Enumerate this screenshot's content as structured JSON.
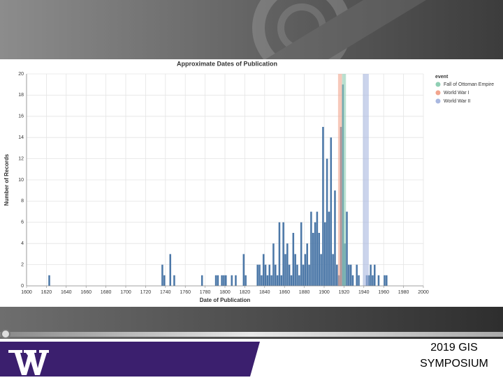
{
  "chart_data": {
    "type": "histogram",
    "title": "Approximate Dates of Publication",
    "x_label": "Date of Publication",
    "y_label": "Number of Records",
    "bins": [
      1622,
      1624,
      1736,
      1738,
      1740,
      1742,
      1744,
      1746,
      1748,
      1750,
      1752,
      1754,
      1756,
      1758,
      1760,
      1762,
      1764,
      1766,
      1768,
      1770,
      1772,
      1774,
      1776,
      1778,
      1780,
      1782,
      1784,
      1786,
      1788,
      1790,
      1792,
      1794,
      1796,
      1798,
      1800,
      1802,
      1804,
      1806,
      1808,
      1810,
      1812,
      1814,
      1816,
      1818,
      1820,
      1822,
      1824,
      1826,
      1828,
      1830,
      1832,
      1834,
      1836,
      1838,
      1840,
      1842,
      1844,
      1846,
      1848,
      1850,
      1852,
      1854,
      1856,
      1858,
      1860,
      1862,
      1864,
      1866,
      1868,
      1870,
      1872,
      1874,
      1876,
      1878,
      1880,
      1882,
      1884,
      1886,
      1888,
      1890,
      1892,
      1894,
      1896,
      1898,
      1900,
      1902,
      1904,
      1906,
      1908,
      1910,
      1912,
      1914,
      1916,
      1918,
      1920,
      1922,
      1924,
      1926,
      1928,
      1930,
      1932,
      1934,
      1936,
      1938,
      1940,
      1942,
      1944,
      1946,
      1948,
      1950,
      1952,
      1954,
      1956,
      1958,
      1960,
      1962,
      1964,
      1966
    ],
    "values": [
      1,
      0,
      2,
      1,
      0,
      0,
      3,
      0,
      1,
      0,
      0,
      0,
      0,
      0,
      0,
      0,
      0,
      0,
      0,
      0,
      0,
      0,
      1,
      0,
      0,
      0,
      0,
      0,
      0,
      1,
      1,
      0,
      1,
      1,
      1,
      0,
      0,
      1,
      0,
      1,
      0,
      0,
      0,
      3,
      1,
      0,
      0,
      0,
      0,
      0,
      2,
      2,
      1,
      3,
      2,
      1,
      2,
      1,
      4,
      2,
      1,
      6,
      1,
      6,
      3,
      4,
      2,
      1,
      5,
      3,
      2,
      1,
      6,
      2,
      3,
      4,
      2,
      7,
      5,
      6,
      7,
      5,
      3,
      15,
      6,
      12,
      7,
      14,
      3,
      9,
      2,
      1,
      15,
      19,
      4,
      7,
      2,
      2,
      1,
      0,
      2,
      1,
      0,
      0,
      0,
      1,
      1,
      2,
      1,
      2,
      0,
      1,
      0,
      0,
      1,
      1,
      0
    ],
    "color": "#4c78a8",
    "legend_title": "event",
    "bands": [
      {
        "name": "Fall of Ottoman Empire",
        "color": "#8fcfb4",
        "start": 1918,
        "end": 1922
      },
      {
        "name": "World War I",
        "color": "#f2a58e",
        "start": 1914,
        "end": 1918
      },
      {
        "name": "World War II",
        "color": "#a9b8e0",
        "start": 1939,
        "end": 1945
      }
    ],
    "xlim": [
      1600,
      2000
    ],
    "xticks": [
      1600,
      1620,
      1640,
      1660,
      1680,
      1700,
      1720,
      1740,
      1760,
      1780,
      1800,
      1820,
      1840,
      1860,
      1880,
      1900,
      1920,
      1940,
      1960,
      1980,
      2000
    ],
    "ylim": [
      0,
      20
    ],
    "yticks": [
      0,
      2,
      4,
      6,
      8,
      10,
      12,
      14,
      16,
      18,
      20
    ],
    "grid": true,
    "legend": "right"
  },
  "footer": {
    "lines": [
      "2019 GIS",
      "SYMPOSIUM"
    ]
  }
}
